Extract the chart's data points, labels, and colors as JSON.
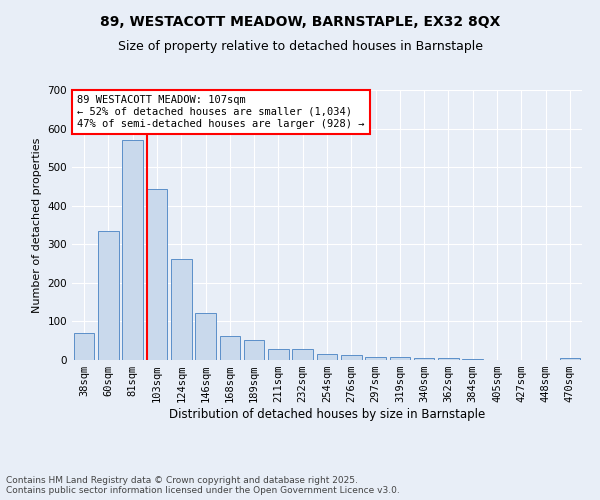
{
  "title1": "89, WESTACOTT MEADOW, BARNSTAPLE, EX32 8QX",
  "title2": "Size of property relative to detached houses in Barnstaple",
  "xlabel": "Distribution of detached houses by size in Barnstaple",
  "ylabel": "Number of detached properties",
  "categories": [
    "38sqm",
    "60sqm",
    "81sqm",
    "103sqm",
    "124sqm",
    "146sqm",
    "168sqm",
    "189sqm",
    "211sqm",
    "232sqm",
    "254sqm",
    "276sqm",
    "297sqm",
    "319sqm",
    "340sqm",
    "362sqm",
    "384sqm",
    "405sqm",
    "427sqm",
    "448sqm",
    "470sqm"
  ],
  "values": [
    70,
    335,
    570,
    443,
    262,
    122,
    63,
    52,
    28,
    28,
    15,
    13,
    7,
    7,
    6,
    4,
    3,
    1,
    0,
    0,
    5
  ],
  "bar_color": "#c9d9ec",
  "bar_edge_color": "#5b8fc9",
  "background_color": "#e8eef7",
  "grid_color": "#ffffff",
  "vline_color": "red",
  "annotation_text": "89 WESTACOTT MEADOW: 107sqm\n← 52% of detached houses are smaller (1,034)\n47% of semi-detached houses are larger (928) →",
  "annotation_box_color": "white",
  "annotation_edge_color": "red",
  "ylim": [
    0,
    700
  ],
  "yticks": [
    0,
    100,
    200,
    300,
    400,
    500,
    600,
    700
  ],
  "footnote": "Contains HM Land Registry data © Crown copyright and database right 2025.\nContains public sector information licensed under the Open Government Licence v3.0.",
  "title1_fontsize": 10,
  "title2_fontsize": 9,
  "xlabel_fontsize": 8.5,
  "ylabel_fontsize": 8,
  "tick_fontsize": 7.5,
  "annotation_fontsize": 7.5,
  "footnote_fontsize": 6.5
}
